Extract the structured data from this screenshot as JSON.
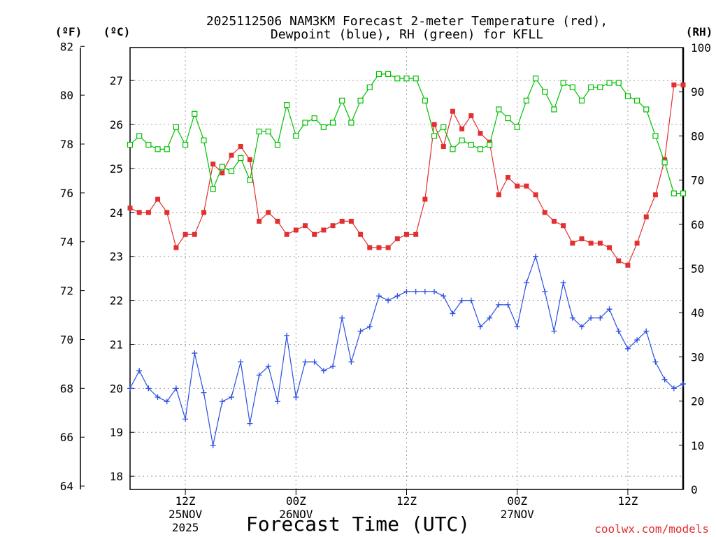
{
  "chart_data": {
    "type": "line",
    "title_line1": "2025112506 NAM3KM Forecast 2-meter Temperature (red),",
    "title_line2": "Dewpoint (blue), RH (green) for KFLL",
    "xlabel": "Forecast Time (UTC)",
    "credit": "coolwx.com/models",
    "units": {
      "fahrenheit": "(ºF)",
      "celsius": "(ºC)",
      "rh": "(RH)"
    },
    "celsius_axis": {
      "range": [
        17.7,
        27.75
      ],
      "ticks": [
        18,
        19,
        20,
        21,
        22,
        23,
        24,
        25,
        26,
        27
      ]
    },
    "fahrenheit_axis": {
      "range": [
        63.86,
        81.95
      ],
      "ticks": [
        64,
        66,
        68,
        70,
        72,
        74,
        76,
        78,
        80,
        82
      ]
    },
    "rh_axis": {
      "range": [
        0,
        100
      ],
      "ticks": [
        0,
        10,
        20,
        30,
        40,
        50,
        60,
        70,
        80,
        90,
        100
      ]
    },
    "x_axis": {
      "range": [
        6,
        66
      ],
      "ticks": [
        {
          "hour": 12,
          "label": "12Z",
          "sub1": "25NOV",
          "sub2": "2025"
        },
        {
          "hour": 24,
          "label": "00Z",
          "sub1": "26NOV",
          "sub2": ""
        },
        {
          "hour": 36,
          "label": "12Z",
          "sub1": "",
          "sub2": ""
        },
        {
          "hour": 48,
          "label": "00Z",
          "sub1": "27NOV",
          "sub2": ""
        },
        {
          "hour": 60,
          "label": "12Z",
          "sub1": "",
          "sub2": ""
        }
      ]
    },
    "series": [
      {
        "name": "2-meter Temperature",
        "unit": "°C",
        "color": "#e23030",
        "marker": "filled-square",
        "points": [
          [
            6,
            24.1
          ],
          [
            7,
            24.0
          ],
          [
            8,
            24.0
          ],
          [
            9,
            24.3
          ],
          [
            10,
            24.0
          ],
          [
            11,
            23.2
          ],
          [
            12,
            23.5
          ],
          [
            13,
            23.5
          ],
          [
            14,
            24.0
          ],
          [
            15,
            25.1
          ],
          [
            16,
            24.9
          ],
          [
            17,
            25.3
          ],
          [
            18,
            25.5
          ],
          [
            19,
            25.2
          ],
          [
            20,
            23.8
          ],
          [
            21,
            24.0
          ],
          [
            22,
            23.8
          ],
          [
            23,
            23.5
          ],
          [
            24,
            23.6
          ],
          [
            25,
            23.7
          ],
          [
            26,
            23.5
          ],
          [
            27,
            23.6
          ],
          [
            28,
            23.7
          ],
          [
            29,
            23.8
          ],
          [
            30,
            23.8
          ],
          [
            31,
            23.5
          ],
          [
            32,
            23.2
          ],
          [
            33,
            23.2
          ],
          [
            34,
            23.2
          ],
          [
            35,
            23.4
          ],
          [
            36,
            23.5
          ],
          [
            37,
            23.5
          ],
          [
            38,
            24.3
          ],
          [
            39,
            26.0
          ],
          [
            40,
            25.5
          ],
          [
            41,
            26.3
          ],
          [
            42,
            25.9
          ],
          [
            43,
            26.2
          ],
          [
            44,
            25.8
          ],
          [
            45,
            25.6
          ],
          [
            46,
            24.4
          ],
          [
            47,
            24.8
          ],
          [
            48,
            24.6
          ],
          [
            49,
            24.6
          ],
          [
            50,
            24.4
          ],
          [
            51,
            24.0
          ],
          [
            52,
            23.8
          ],
          [
            53,
            23.7
          ],
          [
            54,
            23.3
          ],
          [
            55,
            23.4
          ],
          [
            56,
            23.3
          ],
          [
            57,
            23.3
          ],
          [
            58,
            23.2
          ],
          [
            59,
            22.9
          ],
          [
            60,
            22.8
          ],
          [
            61,
            23.3
          ],
          [
            62,
            23.9
          ],
          [
            63,
            24.4
          ],
          [
            64,
            25.2
          ],
          [
            65,
            26.9
          ],
          [
            66,
            26.9
          ]
        ]
      },
      {
        "name": "Dewpoint",
        "unit": "°C",
        "color": "#2a4fe0",
        "marker": "plus",
        "points": [
          [
            6,
            20.0
          ],
          [
            7,
            20.4
          ],
          [
            8,
            20.0
          ],
          [
            9,
            19.8
          ],
          [
            10,
            19.7
          ],
          [
            11,
            20.0
          ],
          [
            12,
            19.3
          ],
          [
            13,
            20.8
          ],
          [
            14,
            19.9
          ],
          [
            15,
            18.7
          ],
          [
            16,
            19.7
          ],
          [
            17,
            19.8
          ],
          [
            18,
            20.6
          ],
          [
            19,
            19.2
          ],
          [
            20,
            20.3
          ],
          [
            21,
            20.5
          ],
          [
            22,
            19.7
          ],
          [
            23,
            21.2
          ],
          [
            24,
            19.8
          ],
          [
            25,
            20.6
          ],
          [
            26,
            20.6
          ],
          [
            27,
            20.4
          ],
          [
            28,
            20.5
          ],
          [
            29,
            21.6
          ],
          [
            30,
            20.6
          ],
          [
            31,
            21.3
          ],
          [
            32,
            21.4
          ],
          [
            33,
            22.1
          ],
          [
            34,
            22.0
          ],
          [
            35,
            22.1
          ],
          [
            36,
            22.2
          ],
          [
            37,
            22.2
          ],
          [
            38,
            22.2
          ],
          [
            39,
            22.2
          ],
          [
            40,
            22.1
          ],
          [
            41,
            21.7
          ],
          [
            42,
            22.0
          ],
          [
            43,
            22.0
          ],
          [
            44,
            21.4
          ],
          [
            45,
            21.6
          ],
          [
            46,
            21.9
          ],
          [
            47,
            21.9
          ],
          [
            48,
            21.4
          ],
          [
            49,
            22.4
          ],
          [
            50,
            23.0
          ],
          [
            51,
            22.2
          ],
          [
            52,
            21.3
          ],
          [
            53,
            22.4
          ],
          [
            54,
            21.6
          ],
          [
            55,
            21.4
          ],
          [
            56,
            21.6
          ],
          [
            57,
            21.6
          ],
          [
            58,
            21.8
          ],
          [
            59,
            21.3
          ],
          [
            60,
            20.9
          ],
          [
            61,
            21.1
          ],
          [
            62,
            21.3
          ],
          [
            63,
            20.6
          ],
          [
            64,
            20.2
          ],
          [
            65,
            20.0
          ],
          [
            66,
            20.1
          ]
        ]
      },
      {
        "name": "RH",
        "unit": "%",
        "color": "#00c000",
        "marker": "open-square",
        "points": [
          [
            6,
            78
          ],
          [
            7,
            80
          ],
          [
            8,
            78
          ],
          [
            9,
            77
          ],
          [
            10,
            77
          ],
          [
            11,
            82
          ],
          [
            12,
            78
          ],
          [
            13,
            85
          ],
          [
            14,
            79
          ],
          [
            15,
            68
          ],
          [
            16,
            73
          ],
          [
            17,
            72
          ],
          [
            18,
            75
          ],
          [
            19,
            70
          ],
          [
            20,
            81
          ],
          [
            21,
            81
          ],
          [
            22,
            78
          ],
          [
            23,
            87
          ],
          [
            24,
            80
          ],
          [
            25,
            83
          ],
          [
            26,
            84
          ],
          [
            27,
            82
          ],
          [
            28,
            83
          ],
          [
            29,
            88
          ],
          [
            30,
            83
          ],
          [
            31,
            88
          ],
          [
            32,
            91
          ],
          [
            33,
            94
          ],
          [
            34,
            94
          ],
          [
            35,
            93
          ],
          [
            36,
            93
          ],
          [
            37,
            93
          ],
          [
            38,
            88
          ],
          [
            39,
            80
          ],
          [
            40,
            82
          ],
          [
            41,
            77
          ],
          [
            42,
            79
          ],
          [
            43,
            78
          ],
          [
            44,
            77
          ],
          [
            45,
            78
          ],
          [
            46,
            86
          ],
          [
            47,
            84
          ],
          [
            48,
            82
          ],
          [
            49,
            88
          ],
          [
            50,
            93
          ],
          [
            51,
            90
          ],
          [
            52,
            86
          ],
          [
            53,
            92
          ],
          [
            54,
            91
          ],
          [
            55,
            88
          ],
          [
            56,
            91
          ],
          [
            57,
            91
          ],
          [
            58,
            92
          ],
          [
            59,
            92
          ],
          [
            60,
            89
          ],
          [
            61,
            88
          ],
          [
            62,
            86
          ],
          [
            63,
            80
          ],
          [
            64,
            74
          ],
          [
            65,
            67
          ],
          [
            66,
            67
          ]
        ]
      }
    ]
  }
}
